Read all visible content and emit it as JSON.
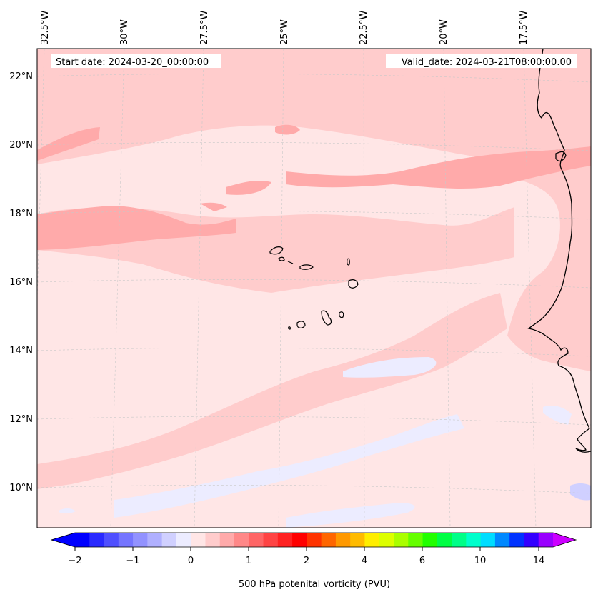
{
  "map": {
    "start_label": "Start date: 2024-03-20_00:00:00",
    "valid_label": "Valid_date: 2024-03-21T08:00:00.00",
    "lon_labels": [
      "32.5°W",
      "30°W",
      "27.5°W",
      "25°W",
      "22.5°W",
      "20°W",
      "17.5°W"
    ],
    "lat_labels": [
      "22°N",
      "20°N",
      "18°N",
      "16°N",
      "14°N",
      "12°N",
      "10°N"
    ],
    "background_color": "#ffe6e6",
    "land_fill": "none",
    "coastline_color": "#000000"
  },
  "colorbar": {
    "label": "500 hPa potenital vorticity (PVU)",
    "ticks": [
      "−2",
      "−1",
      "0",
      "1",
      "2",
      "4",
      "6",
      "10",
      "14"
    ],
    "colors": [
      "#0000ff",
      "#2a2aff",
      "#5050ff",
      "#7575ff",
      "#9292ff",
      "#b0b0ff",
      "#d0d0ff",
      "#ececff",
      "#ffe6e6",
      "#ffcccc",
      "#ffaaaa",
      "#ff8888",
      "#ff6666",
      "#ff4444",
      "#ff2222",
      "#ff0000",
      "#ff3300",
      "#ff6600",
      "#ff9900",
      "#ffbb00",
      "#ffee00",
      "#ddff00",
      "#aaff00",
      "#66ff00",
      "#22ff00",
      "#00ff44",
      "#00ff88",
      "#00ffcc",
      "#00ddff",
      "#0088ff",
      "#0033ff",
      "#3300ff",
      "#9900ff"
    ],
    "under_color": "#0000ff",
    "over_color": "#cc00ff"
  }
}
